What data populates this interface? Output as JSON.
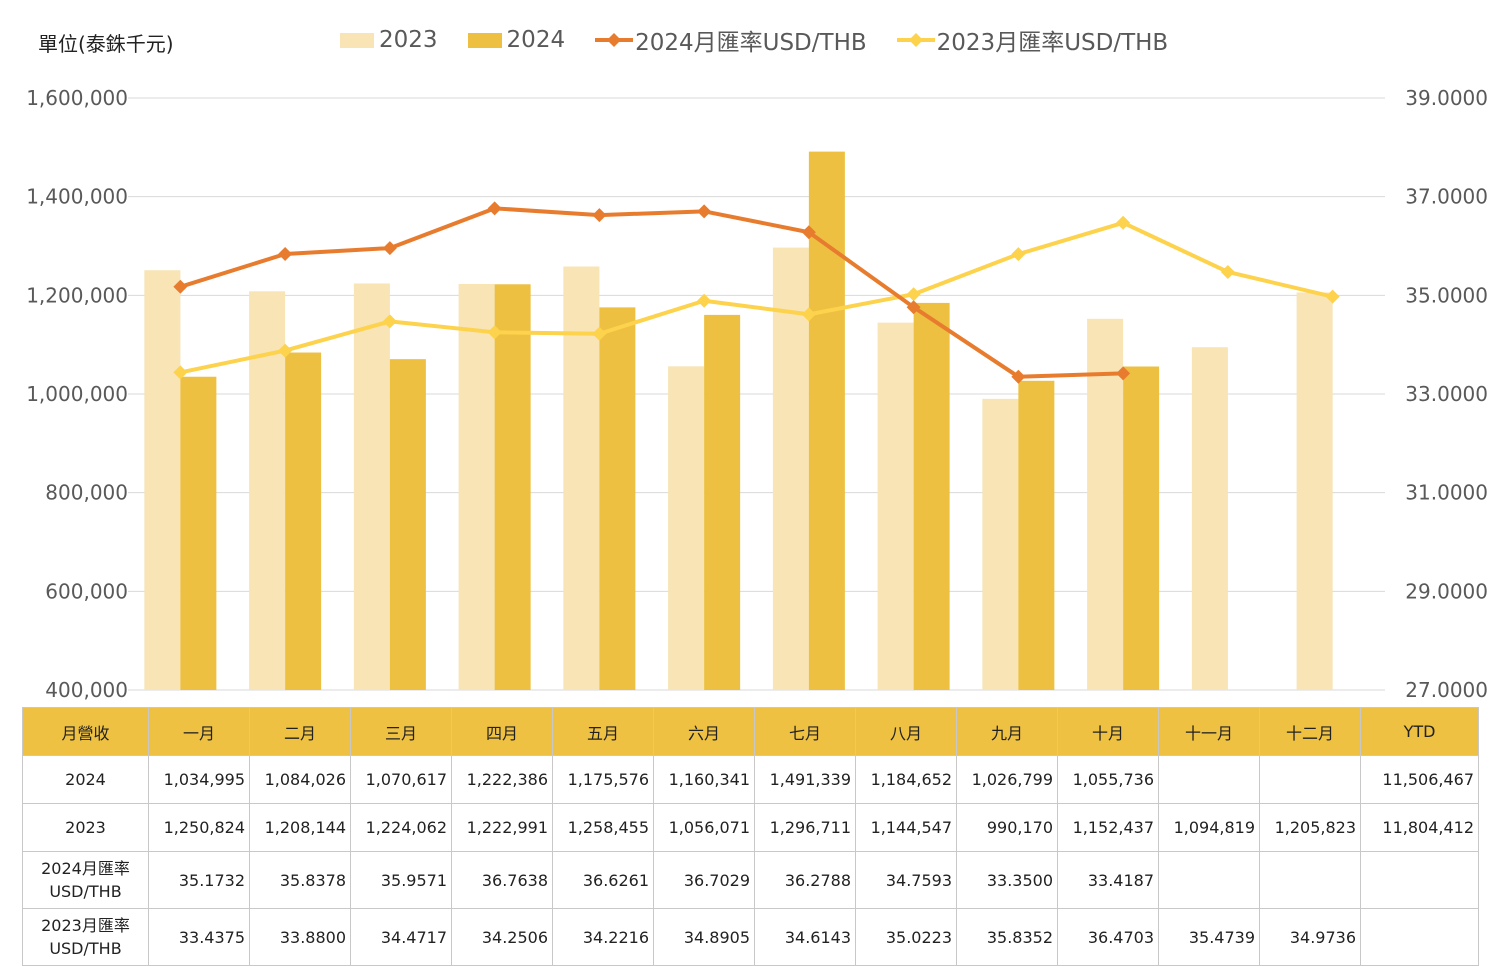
{
  "unit_label": "單位(泰銖千元)",
  "colors": {
    "bar_2023": "#f8e4b4",
    "bar_2024": "#edc041",
    "line_2024": "#e87c2e",
    "line_2023": "#fdd24c",
    "grid": "#d9d9d9",
    "table_header": "#eec143"
  },
  "legend": [
    {
      "label": "2023",
      "kind": "bar",
      "color": "#f8e4b4"
    },
    {
      "label": "2024",
      "kind": "bar",
      "color": "#edc041"
    },
    {
      "label": "2024月匯率USD/THB",
      "kind": "line",
      "color": "#e87c2e"
    },
    {
      "label": "2023月匯率USD/THB",
      "kind": "line",
      "color": "#fdd24c"
    }
  ],
  "chart_data": {
    "type": "bar",
    "categories": [
      "一月",
      "二月",
      "三月",
      "四月",
      "五月",
      "六月",
      "七月",
      "八月",
      "九月",
      "十月",
      "十一月",
      "十二月"
    ],
    "series": [
      {
        "name": "2023",
        "type": "bar",
        "axis": "left",
        "color": "#f8e4b4",
        "values": [
          1250824,
          1208144,
          1224062,
          1222991,
          1258455,
          1056071,
          1296711,
          1144547,
          990170,
          1152437,
          1094819,
          1205823
        ]
      },
      {
        "name": "2024",
        "type": "bar",
        "axis": "left",
        "color": "#edc041",
        "values": [
          1034995,
          1084026,
          1070617,
          1222386,
          1175576,
          1160341,
          1491339,
          1184652,
          1026799,
          1055736,
          null,
          null
        ]
      },
      {
        "name": "2024月匯率USD/THB",
        "type": "line",
        "axis": "right",
        "color": "#e87c2e",
        "values": [
          35.1732,
          35.8378,
          35.9571,
          36.7638,
          36.6261,
          36.7029,
          36.2788,
          34.7593,
          33.35,
          33.4187,
          null,
          null
        ]
      },
      {
        "name": "2023月匯率USD/THB",
        "type": "line",
        "axis": "right",
        "color": "#fdd24c",
        "values": [
          33.4375,
          33.88,
          34.4717,
          34.2506,
          34.2216,
          34.8905,
          34.6143,
          35.0223,
          35.8352,
          36.4703,
          35.4739,
          34.9736
        ]
      }
    ],
    "y_left": {
      "min": 400000,
      "max": 1600000,
      "step": 200000,
      "ticks": [
        "400,000",
        "600,000",
        "800,000",
        "1,000,000",
        "1,200,000",
        "1,400,000",
        "1,600,000"
      ]
    },
    "y_right": {
      "min": 27,
      "max": 39,
      "step": 2,
      "ticks": [
        "27.0000",
        "29.0000",
        "31.0000",
        "33.0000",
        "35.0000",
        "37.0000",
        "39.0000"
      ]
    },
    "grid": true,
    "legend_position": "top"
  },
  "table": {
    "header": [
      "月營收",
      "一月",
      "二月",
      "三月",
      "四月",
      "五月",
      "六月",
      "七月",
      "八月",
      "九月",
      "十月",
      "十一月",
      "十二月",
      "YTD"
    ],
    "rows": [
      {
        "label": [
          "2024"
        ],
        "cells": [
          "1,034,995",
          "1,084,026",
          "1,070,617",
          "1,222,386",
          "1,175,576",
          "1,160,341",
          "1,491,339",
          "1,184,652",
          "1,026,799",
          "1,055,736",
          "",
          "",
          "11,506,467"
        ]
      },
      {
        "label": [
          "2023"
        ],
        "cells": [
          "1,250,824",
          "1,208,144",
          "1,224,062",
          "1,222,991",
          "1,258,455",
          "1,056,071",
          "1,296,711",
          "1,144,547",
          "990,170",
          "1,152,437",
          "1,094,819",
          "1,205,823",
          "11,804,412"
        ]
      },
      {
        "label": [
          "2024月匯率",
          "USD/THB"
        ],
        "cells": [
          "35.1732",
          "35.8378",
          "35.9571",
          "36.7638",
          "36.6261",
          "36.7029",
          "36.2788",
          "34.7593",
          "33.3500",
          "33.4187",
          "",
          "",
          ""
        ]
      },
      {
        "label": [
          "2023月匯率",
          "USD/THB"
        ],
        "cells": [
          "33.4375",
          "33.8800",
          "34.4717",
          "34.2506",
          "34.2216",
          "34.8905",
          "34.6143",
          "35.0223",
          "35.8352",
          "36.4703",
          "35.4739",
          "34.9736",
          ""
        ]
      }
    ]
  }
}
